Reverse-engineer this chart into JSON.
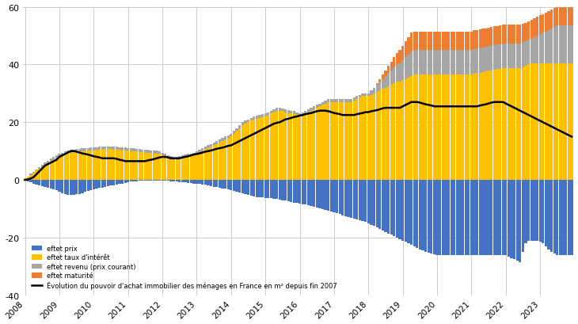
{
  "n_per_year": 12,
  "years": [
    "2008",
    "2009",
    "2010",
    "2011",
    "2012",
    "2013",
    "2014",
    "2015",
    "2016",
    "2017",
    "2018",
    "2019",
    "2020",
    "2021",
    "2022",
    "2023"
  ],
  "year_start_idx": [
    0,
    12,
    24,
    36,
    48,
    60,
    72,
    84,
    96,
    108,
    120,
    132,
    144,
    156,
    168,
    180
  ],
  "color_prix": "#4472C4",
  "color_taux": "#FFC000",
  "color_revenu": "#A6A6A6",
  "color_maturite": "#ED7D31",
  "color_line": "#000000",
  "ylim": [
    -40,
    60
  ],
  "yticks": [
    -40,
    -20,
    0,
    20,
    40,
    60
  ],
  "background_color": "#FFFFFF",
  "grid_color": "#CCCCCC",
  "effet_prix": [
    -0.3,
    -0.6,
    -0.9,
    -1.2,
    -1.5,
    -1.8,
    -2.1,
    -2.4,
    -2.7,
    -3.0,
    -3.2,
    -3.5,
    -4.0,
    -4.5,
    -5.0,
    -5.2,
    -5.3,
    -5.2,
    -5.0,
    -4.8,
    -4.5,
    -4.2,
    -3.8,
    -3.5,
    -3.2,
    -3.0,
    -2.8,
    -2.6,
    -2.4,
    -2.2,
    -2.0,
    -1.8,
    -1.6,
    -1.4,
    -1.2,
    -1.0,
    -0.8,
    -0.6,
    -0.5,
    -0.4,
    -0.3,
    -0.2,
    -0.2,
    -0.2,
    -0.2,
    -0.2,
    -0.2,
    -0.2,
    -0.2,
    -0.2,
    -0.3,
    -0.4,
    -0.5,
    -0.6,
    -0.7,
    -0.8,
    -0.9,
    -1.0,
    -1.1,
    -1.2,
    -1.3,
    -1.4,
    -1.5,
    -1.7,
    -1.9,
    -2.1,
    -2.3,
    -2.5,
    -2.7,
    -2.9,
    -3.1,
    -3.3,
    -3.5,
    -3.8,
    -4.1,
    -4.4,
    -4.7,
    -5.0,
    -5.3,
    -5.5,
    -5.7,
    -5.9,
    -6.0,
    -6.1,
    -6.2,
    -6.3,
    -6.4,
    -6.5,
    -6.6,
    -6.8,
    -7.0,
    -7.2,
    -7.4,
    -7.6,
    -7.8,
    -8.0,
    -8.2,
    -8.4,
    -8.6,
    -8.8,
    -9.0,
    -9.2,
    -9.5,
    -9.8,
    -10.1,
    -10.4,
    -10.7,
    -11.0,
    -11.3,
    -11.6,
    -11.9,
    -12.2,
    -12.5,
    -12.8,
    -13.1,
    -13.4,
    -13.7,
    -14.0,
    -14.3,
    -14.6,
    -15.0,
    -15.5,
    -16.0,
    -16.5,
    -17.0,
    -17.5,
    -18.0,
    -18.5,
    -19.0,
    -19.5,
    -20.0,
    -20.5,
    -21.0,
    -21.5,
    -22.0,
    -22.5,
    -23.0,
    -23.5,
    -24.0,
    -24.5,
    -25.0,
    -25.3,
    -25.5,
    -25.8,
    -26.0,
    -26.0,
    -26.0,
    -26.0,
    -26.0,
    -26.0,
    -26.0,
    -26.0,
    -26.0,
    -26.0,
    -26.0,
    -26.0,
    -26.0,
    -26.0,
    -26.0,
    -26.0,
    -26.0,
    -26.0,
    -26.0,
    -26.0,
    -26.0,
    -26.0,
    -26.0,
    -26.0,
    -26.0,
    -26.5,
    -27.0,
    -27.5,
    -28.0,
    -28.5,
    -25.0,
    -22.0,
    -21.0,
    -21.0,
    -21.0,
    -21.0,
    -21.5,
    -22.0,
    -23.0,
    -24.0,
    -25.0,
    -25.5,
    -26.0,
    -26.0,
    -26.0,
    -26.0,
    -26.0,
    -26.0
  ],
  "effet_taux": [
    0.5,
    1.0,
    1.8,
    2.5,
    3.2,
    3.9,
    4.5,
    5.2,
    5.8,
    6.5,
    7.0,
    7.5,
    8.0,
    8.5,
    9.0,
    9.3,
    9.5,
    9.6,
    9.7,
    9.8,
    9.9,
    10.0,
    10.1,
    10.2,
    10.3,
    10.4,
    10.5,
    10.6,
    10.7,
    10.7,
    10.7,
    10.6,
    10.5,
    10.4,
    10.3,
    10.2,
    10.1,
    10.0,
    9.9,
    9.8,
    9.7,
    9.6,
    9.5,
    9.4,
    9.3,
    9.2,
    9.1,
    9.0,
    8.5,
    8.0,
    7.5,
    7.2,
    7.0,
    7.0,
    7.2,
    7.5,
    7.8,
    8.0,
    8.2,
    8.5,
    9.0,
    9.5,
    10.0,
    10.5,
    11.0,
    11.5,
    12.0,
    12.5,
    13.0,
    13.5,
    14.0,
    14.5,
    15.0,
    16.0,
    17.0,
    18.0,
    19.0,
    19.5,
    20.0,
    20.5,
    21.0,
    21.2,
    21.5,
    21.7,
    22.0,
    22.5,
    23.0,
    23.5,
    24.0,
    24.0,
    23.8,
    23.5,
    23.2,
    23.0,
    22.8,
    22.5,
    22.0,
    22.5,
    23.0,
    23.5,
    24.0,
    24.5,
    25.0,
    25.5,
    26.0,
    26.5,
    27.0,
    27.0,
    27.0,
    27.0,
    27.0,
    27.0,
    27.0,
    27.0,
    27.0,
    27.5,
    28.0,
    28.5,
    29.0,
    29.0,
    29.0,
    29.5,
    30.0,
    30.5,
    31.0,
    31.5,
    32.0,
    32.5,
    33.0,
    33.5,
    34.0,
    34.0,
    34.5,
    35.0,
    35.5,
    36.0,
    36.5,
    36.5,
    36.5,
    36.5,
    36.5,
    36.5,
    36.5,
    36.5,
    36.5,
    36.5,
    36.5,
    36.5,
    36.5,
    36.5,
    36.5,
    36.5,
    36.5,
    36.5,
    36.5,
    36.5,
    36.5,
    36.8,
    37.0,
    37.2,
    37.4,
    37.6,
    37.8,
    38.0,
    38.2,
    38.4,
    38.6,
    38.8,
    38.8,
    38.8,
    38.8,
    38.8,
    38.8,
    38.8,
    39.0,
    39.5,
    40.0,
    40.5,
    40.5,
    40.5,
    40.5,
    40.5,
    40.5,
    40.5,
    40.5,
    40.5,
    40.5,
    40.5,
    40.5,
    40.5,
    40.5,
    40.5
  ],
  "effet_revenu": [
    0.1,
    0.2,
    0.3,
    0.4,
    0.5,
    0.6,
    0.7,
    0.8,
    0.9,
    1.0,
    1.0,
    1.0,
    1.0,
    1.0,
    1.0,
    1.0,
    1.0,
    1.0,
    1.0,
    1.0,
    1.0,
    1.0,
    1.0,
    1.0,
    1.0,
    1.0,
    1.0,
    1.0,
    1.0,
    1.0,
    1.0,
    1.0,
    1.0,
    1.0,
    1.0,
    1.0,
    1.0,
    1.0,
    1.0,
    1.0,
    1.0,
    1.0,
    1.0,
    1.0,
    1.0,
    1.0,
    1.0,
    1.0,
    1.0,
    1.0,
    1.0,
    1.0,
    1.0,
    1.0,
    1.0,
    1.0,
    1.0,
    1.0,
    1.0,
    1.0,
    1.0,
    1.0,
    1.0,
    1.0,
    1.0,
    1.0,
    1.0,
    1.0,
    1.0,
    1.0,
    1.0,
    1.0,
    1.0,
    1.0,
    1.0,
    1.0,
    1.0,
    1.0,
    1.0,
    1.0,
    1.0,
    1.0,
    1.0,
    1.0,
    1.0,
    1.0,
    1.0,
    1.0,
    1.0,
    1.0,
    1.0,
    1.0,
    1.0,
    1.0,
    1.0,
    1.0,
    1.0,
    1.0,
    1.0,
    1.0,
    1.0,
    1.0,
    1.0,
    1.0,
    1.0,
    1.0,
    1.0,
    1.0,
    1.0,
    1.0,
    1.0,
    1.0,
    1.0,
    1.0,
    1.0,
    1.0,
    1.0,
    1.0,
    1.0,
    1.0,
    1.0,
    1.5,
    2.0,
    2.5,
    3.0,
    3.5,
    4.0,
    4.5,
    5.0,
    5.5,
    6.0,
    6.5,
    7.0,
    7.5,
    8.0,
    8.5,
    8.5,
    8.5,
    8.5,
    8.5,
    8.5,
    8.5,
    8.5,
    8.5,
    8.5,
    8.5,
    8.5,
    8.5,
    8.5,
    8.5,
    8.5,
    8.5,
    8.5,
    8.5,
    8.5,
    8.5,
    8.5,
    8.5,
    8.5,
    8.5,
    8.5,
    8.5,
    8.5,
    8.5,
    8.5,
    8.5,
    8.5,
    8.5,
    8.5,
    8.5,
    8.5,
    8.5,
    8.5,
    8.5,
    8.5,
    8.5,
    8.5,
    8.5,
    9.0,
    9.5,
    10.0,
    10.5,
    11.0,
    11.5,
    12.0,
    12.5,
    13.0,
    13.0,
    13.0,
    13.0,
    13.0,
    13.0
  ],
  "effet_maturite": [
    0.0,
    0.0,
    0.0,
    0.0,
    0.0,
    0.0,
    0.0,
    0.0,
    0.0,
    0.0,
    0.0,
    0.0,
    0.0,
    0.0,
    0.0,
    0.0,
    0.0,
    0.0,
    0.0,
    0.0,
    0.0,
    0.0,
    0.0,
    0.0,
    0.0,
    0.0,
    0.0,
    0.0,
    0.0,
    0.0,
    0.0,
    0.0,
    0.0,
    0.0,
    0.0,
    0.0,
    0.0,
    0.0,
    0.0,
    0.0,
    0.0,
    0.0,
    0.0,
    0.0,
    0.0,
    0.0,
    0.0,
    0.0,
    0.0,
    0.0,
    0.0,
    0.0,
    0.0,
    0.0,
    0.0,
    0.0,
    0.0,
    0.0,
    0.0,
    0.0,
    0.0,
    0.0,
    0.0,
    0.0,
    0.0,
    0.0,
    0.0,
    0.0,
    0.0,
    0.0,
    0.0,
    0.0,
    0.0,
    0.0,
    0.0,
    0.0,
    0.0,
    0.0,
    0.0,
    0.0,
    0.0,
    0.0,
    0.0,
    0.0,
    0.0,
    0.0,
    0.0,
    0.0,
    0.0,
    0.0,
    0.0,
    0.0,
    0.0,
    0.0,
    0.0,
    0.0,
    0.0,
    0.0,
    0.0,
    0.0,
    0.0,
    0.0,
    0.0,
    0.0,
    0.0,
    0.0,
    0.0,
    0.0,
    0.0,
    0.0,
    0.0,
    0.0,
    0.0,
    0.0,
    0.0,
    0.0,
    0.0,
    0.0,
    0.0,
    0.0,
    0.0,
    0.0,
    0.0,
    0.5,
    1.0,
    1.5,
    2.0,
    2.5,
    3.0,
    3.5,
    4.0,
    4.5,
    5.0,
    5.5,
    6.0,
    6.5,
    6.5,
    6.5,
    6.5,
    6.5,
    6.5,
    6.5,
    6.5,
    6.5,
    6.5,
    6.5,
    6.5,
    6.5,
    6.5,
    6.5,
    6.5,
    6.5,
    6.5,
    6.5,
    6.5,
    6.5,
    6.5,
    6.5,
    6.5,
    6.5,
    6.5,
    6.5,
    6.5,
    6.5,
    6.5,
    6.5,
    6.5,
    6.5,
    6.5,
    6.5,
    6.5,
    6.5,
    6.5,
    6.5,
    6.5,
    6.5,
    6.5,
    6.5,
    6.5,
    6.5,
    6.5,
    6.5,
    6.5,
    6.5,
    6.5,
    6.5,
    6.5,
    6.5,
    6.5,
    6.5,
    6.5,
    6.5
  ],
  "line_values": [
    0.0,
    0.2,
    0.5,
    1.0,
    2.0,
    3.0,
    4.0,
    5.0,
    5.5,
    6.0,
    6.5,
    7.0,
    8.0,
    8.5,
    9.0,
    9.5,
    10.0,
    10.0,
    9.8,
    9.5,
    9.2,
    9.0,
    8.8,
    8.5,
    8.2,
    8.0,
    7.8,
    7.5,
    7.5,
    7.5,
    7.5,
    7.5,
    7.3,
    7.0,
    6.8,
    6.5,
    6.5,
    6.5,
    6.5,
    6.5,
    6.5,
    6.5,
    6.5,
    6.8,
    7.0,
    7.2,
    7.5,
    7.8,
    8.0,
    8.0,
    7.8,
    7.5,
    7.5,
    7.5,
    7.5,
    7.8,
    8.0,
    8.2,
    8.5,
    8.8,
    9.0,
    9.2,
    9.5,
    9.8,
    10.0,
    10.2,
    10.5,
    10.8,
    11.0,
    11.2,
    11.5,
    11.8,
    12.0,
    12.5,
    13.0,
    13.5,
    14.0,
    14.5,
    15.0,
    15.5,
    16.0,
    16.5,
    17.0,
    17.5,
    18.0,
    18.5,
    19.0,
    19.5,
    19.8,
    20.0,
    20.5,
    21.0,
    21.2,
    21.5,
    21.8,
    22.0,
    22.3,
    22.5,
    22.8,
    23.0,
    23.2,
    23.5,
    23.8,
    24.0,
    24.0,
    24.0,
    23.8,
    23.5,
    23.2,
    23.0,
    22.8,
    22.5,
    22.5,
    22.5,
    22.5,
    22.5,
    22.8,
    23.0,
    23.2,
    23.5,
    23.5,
    23.8,
    24.0,
    24.2,
    24.5,
    24.8,
    25.0,
    25.0,
    25.0,
    25.0,
    25.0,
    25.0,
    25.5,
    26.0,
    26.5,
    27.0,
    27.0,
    27.0,
    26.8,
    26.5,
    26.2,
    26.0,
    25.8,
    25.5,
    25.5,
    25.5,
    25.5,
    25.5,
    25.5,
    25.5,
    25.5,
    25.5,
    25.5,
    25.5,
    25.5,
    25.5,
    25.5,
    25.5,
    25.5,
    25.8,
    26.0,
    26.2,
    26.5,
    26.8,
    27.0,
    27.0,
    27.0,
    27.0,
    26.5,
    26.0,
    25.5,
    25.0,
    24.5,
    24.0,
    23.5,
    23.0,
    22.5,
    22.0,
    21.5,
    21.0,
    20.5,
    20.0,
    19.5,
    19.0,
    18.5,
    18.0,
    17.5,
    17.0,
    16.5,
    16.0,
    15.5,
    15.0
  ]
}
